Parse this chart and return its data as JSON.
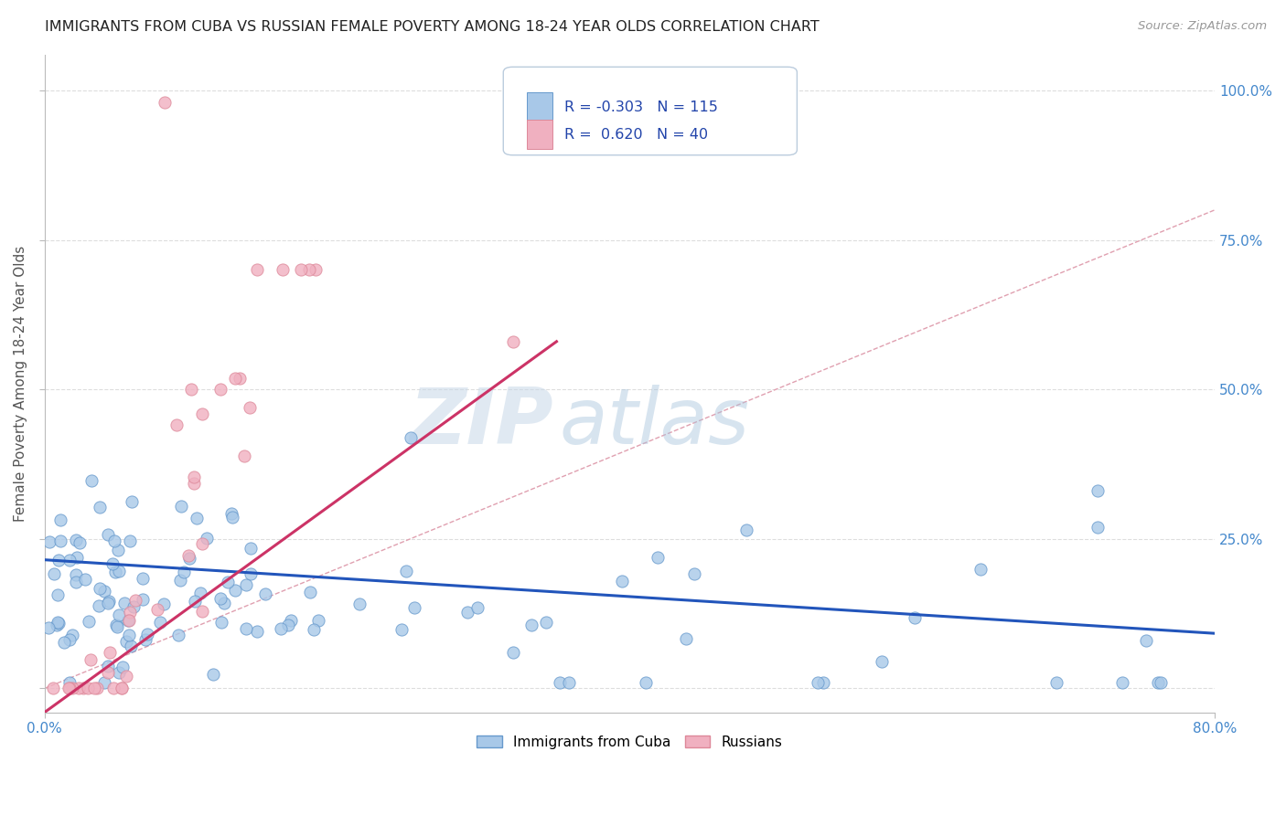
{
  "title": "IMMIGRANTS FROM CUBA VS RUSSIAN FEMALE POVERTY AMONG 18-24 YEAR OLDS CORRELATION CHART",
  "source": "Source: ZipAtlas.com",
  "ylabel": "Female Poverty Among 18-24 Year Olds",
  "yticks_labels": [
    "",
    "25.0%",
    "50.0%",
    "75.0%",
    "100.0%"
  ],
  "ytick_vals": [
    0.0,
    0.25,
    0.5,
    0.75,
    1.0
  ],
  "xlim": [
    0.0,
    0.8
  ],
  "ylim": [
    -0.04,
    1.06
  ],
  "legend_R_cuba": "-0.303",
  "legend_N_cuba": "115",
  "legend_R_russian": "0.620",
  "legend_N_russian": "40",
  "cuba_color": "#a8c8e8",
  "cuba_edge_color": "#6699cc",
  "russian_color": "#f0b0c0",
  "russian_edge_color": "#dd8899",
  "trend_cuba_color": "#2255bb",
  "trend_russian_color": "#cc3366",
  "diagonal_color": "#e0a0b0",
  "watermark_zip": "ZIP",
  "watermark_atlas": "atlas",
  "background_color": "#ffffff",
  "grid_color": "#dddddd",
  "title_color": "#222222",
  "right_ytick_color": "#4488cc",
  "bottom_xlabel_color": "#4488cc"
}
